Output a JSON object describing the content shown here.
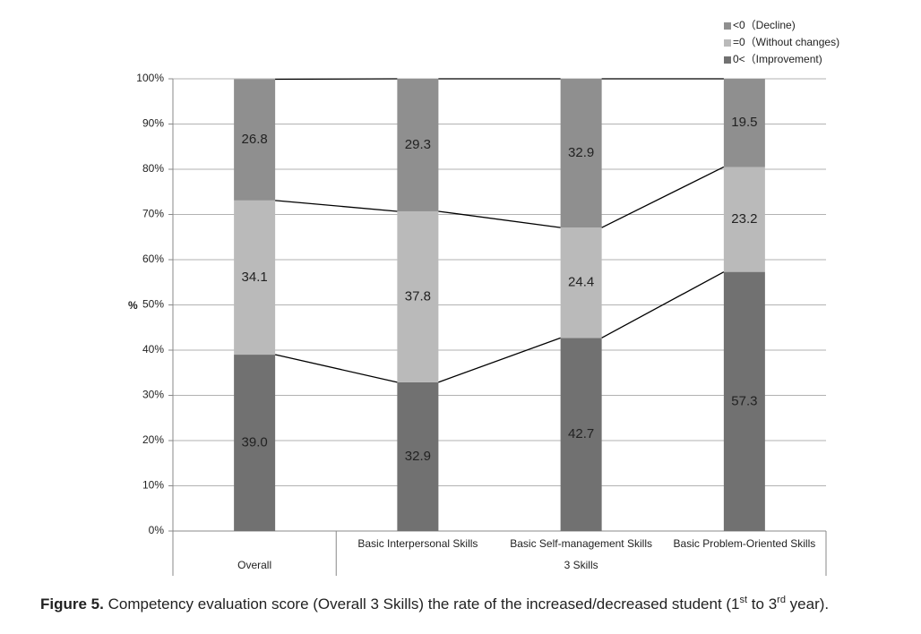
{
  "chart_data": {
    "type": "stacked_bar",
    "categories": [
      null,
      "Basic Interpersonal Skills",
      "Basic Self-management Skills",
      "Basic Problem-Oriented Skills"
    ],
    "groups": [
      {
        "label": "Overall",
        "count": 1
      },
      {
        "label": "3 Skills",
        "count": 3
      }
    ],
    "y_label": "%",
    "series": [
      {
        "name": "0<（Improvement)",
        "color": "#717171",
        "values": [
          39.0,
          32.9,
          42.7,
          57.3
        ],
        "value_labels": [
          "39.0",
          "32.9",
          "42.7",
          "57.3"
        ]
      },
      {
        "name": "=0（Without changes)",
        "color": "#bababa",
        "values": [
          34.1,
          37.8,
          24.4,
          23.2
        ],
        "value_labels": [
          "34.1",
          "37.8",
          "24.4",
          "23.2"
        ]
      },
      {
        "name": "<0（Decline)",
        "color": "#8f8f8f",
        "values": [
          26.8,
          29.3,
          32.9,
          19.5
        ],
        "value_labels": [
          "26.8",
          "29.3",
          "32.9",
          "19.5"
        ]
      }
    ],
    "ylim": [
      0,
      100
    ],
    "yticks": [
      {
        "value": 0,
        "label": "0%"
      },
      {
        "value": 10,
        "label": "10%"
      },
      {
        "value": 20,
        "label": "20%"
      },
      {
        "value": 30,
        "label": "30%"
      },
      {
        "value": 40,
        "label": "40%"
      },
      {
        "value": 50,
        "label": "50%"
      },
      {
        "value": 60,
        "label": "60%"
      },
      {
        "value": 70,
        "label": "70%"
      },
      {
        "value": 80,
        "label": "80%"
      },
      {
        "value": 90,
        "label": "90%"
      },
      {
        "value": 100,
        "label": "100%"
      }
    ],
    "grid": true,
    "legend": "top-right",
    "caption": {
      "label": "Figure 5.",
      "parts": [
        "Competency evaluation score (Overall 3 Skills) the rate of the increased/decreased student (1",
        "st",
        " to 3",
        "rd",
        " year)."
      ]
    }
  }
}
